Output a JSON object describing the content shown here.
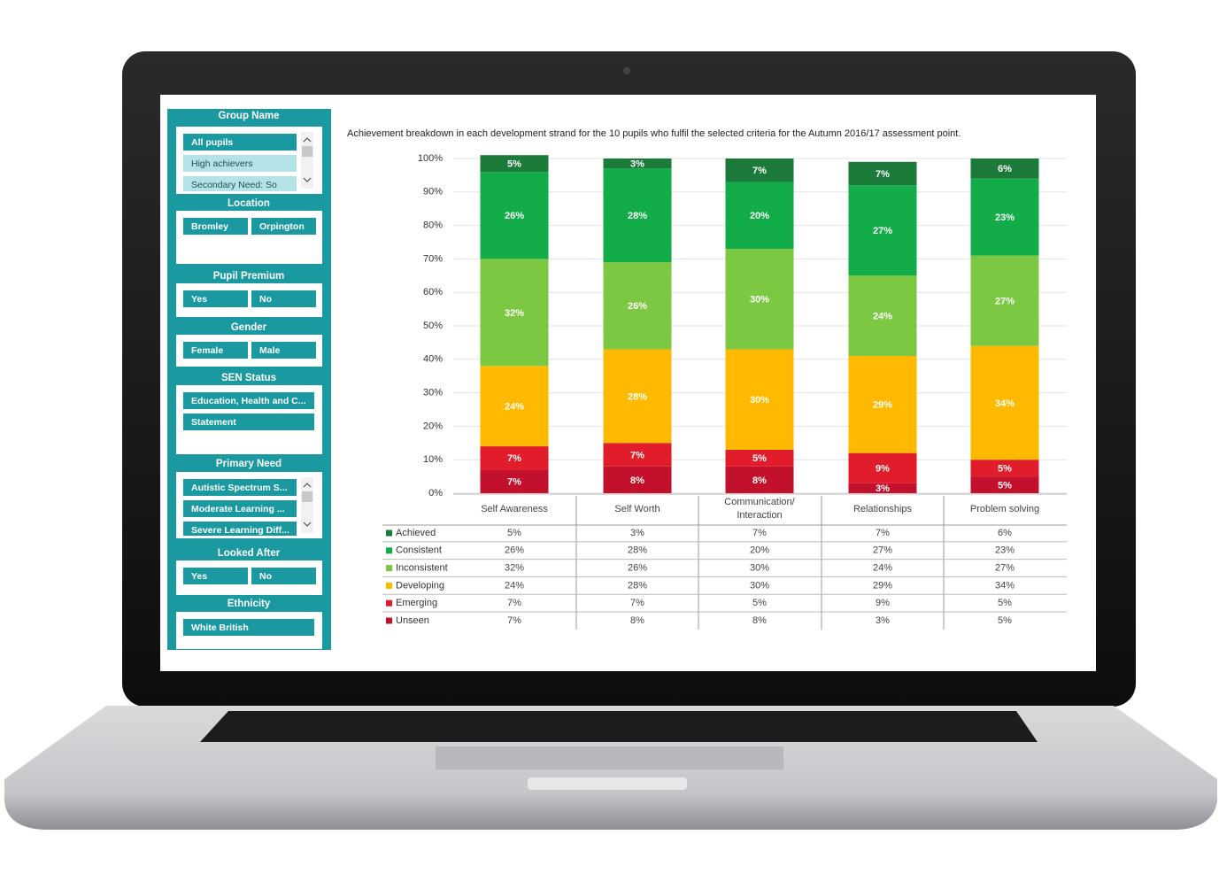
{
  "sidebar": [
    {
      "title": "Group Name",
      "items": [
        "All pupils",
        "High achievers",
        "Secondary Need: So"
      ]
    },
    {
      "title": "Location",
      "items": [
        "Bromley",
        "Orpington"
      ]
    },
    {
      "title": "Pupil Premium",
      "items": [
        "Yes",
        "No"
      ]
    },
    {
      "title": "Gender",
      "items": [
        "Female",
        "Male"
      ]
    },
    {
      "title": "SEN Status",
      "items": [
        "Education, Health and C...",
        "Statement"
      ]
    },
    {
      "title": "Primary Need",
      "items": [
        "Autistic Spectrum S...",
        "Moderate Learning ...",
        "Severe Learning Diff..."
      ]
    },
    {
      "title": "Looked After",
      "items": [
        "Yes",
        "No"
      ]
    },
    {
      "title": "Ethnicity",
      "items": [
        "White British"
      ]
    }
  ],
  "chart_data": {
    "type": "stacked-bar",
    "title": "Achievement breakdown in each development strand for the 10 pupils who fulfil the selected criteria for the Autumn 2016/17 assessment point.",
    "categories": [
      "Self Awareness",
      "Self Worth",
      "Communication/ Interaction",
      "Relationships",
      "Problem solving"
    ],
    "series": [
      {
        "name": "Achieved",
        "color": "#1b7a3a",
        "values": [
          5,
          3,
          7,
          7,
          6
        ],
        "value_labels": [
          "5%",
          "3%",
          "7%",
          "7%",
          "6%"
        ]
      },
      {
        "name": "Consistent",
        "color": "#12ac48",
        "values": [
          26,
          28,
          20,
          27,
          23
        ],
        "value_labels": [
          "26%",
          "28%",
          "20%",
          "27%",
          "23%"
        ]
      },
      {
        "name": "Inconsistent",
        "color": "#7dc843",
        "values": [
          32,
          26,
          30,
          24,
          27
        ],
        "value_labels": [
          "32%",
          "26%",
          "30%",
          "24%",
          "27%"
        ]
      },
      {
        "name": "Developing",
        "color": "#ffb900",
        "values": [
          24,
          28,
          30,
          29,
          34
        ],
        "value_labels": [
          "24%",
          "28%",
          "30%",
          "29%",
          "34%"
        ]
      },
      {
        "name": "Emerging",
        "color": "#e11d2b",
        "values": [
          7,
          7,
          5,
          9,
          5
        ],
        "value_labels": [
          "7%",
          "7%",
          "5%",
          "9%",
          "5%"
        ]
      },
      {
        "name": "Unseen",
        "color": "#c3102c",
        "values": [
          7,
          8,
          8,
          3,
          5
        ],
        "value_labels": [
          "7%",
          "8%",
          "8%",
          "3%",
          "5%"
        ]
      }
    ],
    "ylim": [
      0,
      100
    ],
    "yticks": [
      {
        "value": 0,
        "label": "0%"
      },
      {
        "value": 10,
        "label": "10%"
      },
      {
        "value": 20,
        "label": "20%"
      },
      {
        "value": 30,
        "label": "30%"
      },
      {
        "value": 40,
        "label": "40%"
      },
      {
        "value": 50,
        "label": "50%"
      },
      {
        "value": 60,
        "label": "60%"
      },
      {
        "value": 70,
        "label": "70%"
      },
      {
        "value": 80,
        "label": "80%"
      },
      {
        "value": 90,
        "label": "90%"
      },
      {
        "value": 100,
        "label": "100%"
      }
    ],
    "grid": true
  }
}
